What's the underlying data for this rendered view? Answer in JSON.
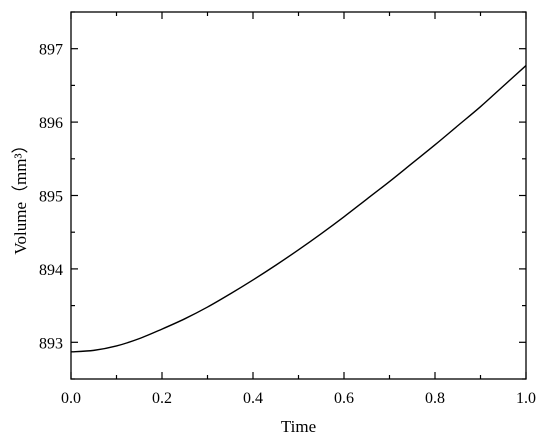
{
  "chart_data": {
    "type": "line",
    "title": "",
    "xlabel": "Time",
    "ylabel": "Volume（mm³）",
    "xlim": [
      0.0,
      1.0
    ],
    "ylim": [
      892.5,
      897.5
    ],
    "xticks": [
      0.0,
      0.2,
      0.4,
      0.6,
      0.8,
      1.0
    ],
    "xtick_labels": [
      "0.0",
      "0.2",
      "0.4",
      "0.6",
      "0.8",
      "1.0"
    ],
    "yticks": [
      893,
      894,
      895,
      896,
      897
    ],
    "ytick_labels": [
      "893",
      "894",
      "895",
      "896",
      "897"
    ],
    "grid": false,
    "legend": "none",
    "series": [
      {
        "color": "#000000",
        "x": [
          0.0,
          0.05,
          0.1,
          0.15,
          0.2,
          0.25,
          0.3,
          0.35,
          0.4,
          0.45,
          0.5,
          0.55,
          0.6,
          0.65,
          0.7,
          0.75,
          0.8,
          0.85,
          0.9,
          0.95,
          1.0
        ],
        "y": [
          892.87,
          892.89,
          892.95,
          893.05,
          893.18,
          893.32,
          893.48,
          893.66,
          893.85,
          894.05,
          894.26,
          894.48,
          894.71,
          894.95,
          895.19,
          895.44,
          895.69,
          895.95,
          896.21,
          896.49,
          896.77
        ]
      }
    ]
  }
}
